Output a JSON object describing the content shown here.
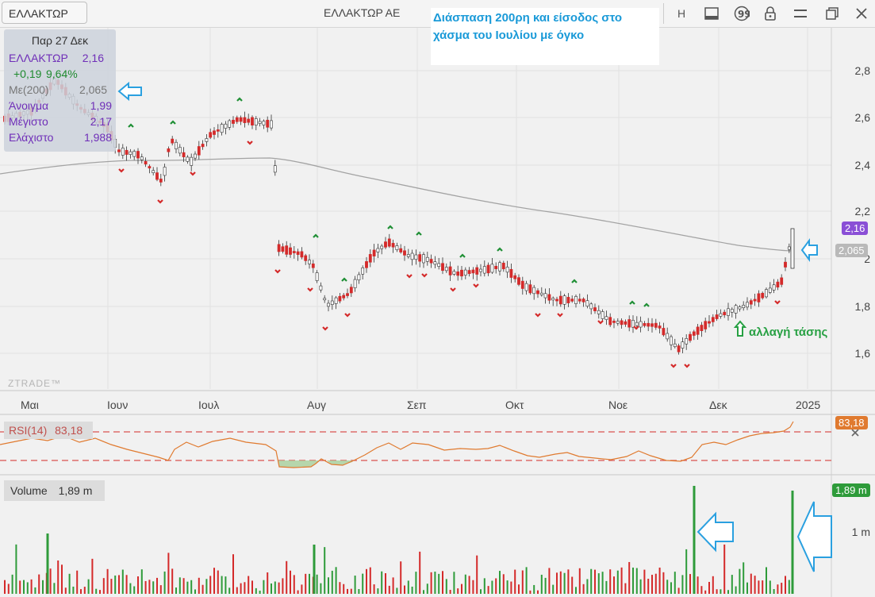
{
  "toolbar": {
    "symbol": "ΕΛΛΑΚΤΩΡ",
    "company": "ΕΛΛΑΚΤΩΡ ΑΕ",
    "h_label": "H",
    "icons": [
      "h-button",
      "panel-icon",
      "quote-icon",
      "lock-icon",
      "menu-icon",
      "restore-window-icon",
      "close-icon"
    ]
  },
  "note": {
    "line1": "Διάσπαση 200ρη και είσοδος στο",
    "line2": "χάσμα του Ιουλίου με όγκο"
  },
  "ohlc": {
    "date": "Παρ 27 Δεκ",
    "symbol": "ΕΛΛΑΚΤΩΡ",
    "price": "2,16",
    "change": "+0,19",
    "change_pct": "9,64%",
    "ma_label": "Με(200)",
    "ma_value": "2,065",
    "open_label": "Άνοιγμα",
    "open": "1,99",
    "high_label": "Μέγιστο",
    "high": "2,17",
    "low_label": "Ελάχιστο",
    "low": "1,988"
  },
  "price_axis": [
    "2,8",
    "2,6",
    "2,4",
    "2,2",
    "2",
    "1,8",
    "1,6"
  ],
  "price_badge": "2,16",
  "ma_badge": "2,065",
  "time_axis": [
    "Μαι",
    "Ιουν",
    "Ιουλ",
    "Αυγ",
    "Σεπ",
    "Οκτ",
    "Νοε",
    "Δεκ",
    "2025"
  ],
  "watermark": "ZTRADE™",
  "annotation": "αλλαγή τάσης",
  "rsi": {
    "label": "RSI(14)",
    "value": "83,18",
    "badge": "83,18"
  },
  "volume": {
    "label": "Volume",
    "value": "1,89 m",
    "badge": "1,89 m",
    "axis_label": "1 m"
  },
  "colors": {
    "up": "#2e9b3a",
    "down": "#d42a2a",
    "ma": "#999999",
    "rsi": "#e07a2f",
    "accent": "#1a9ad8"
  }
}
